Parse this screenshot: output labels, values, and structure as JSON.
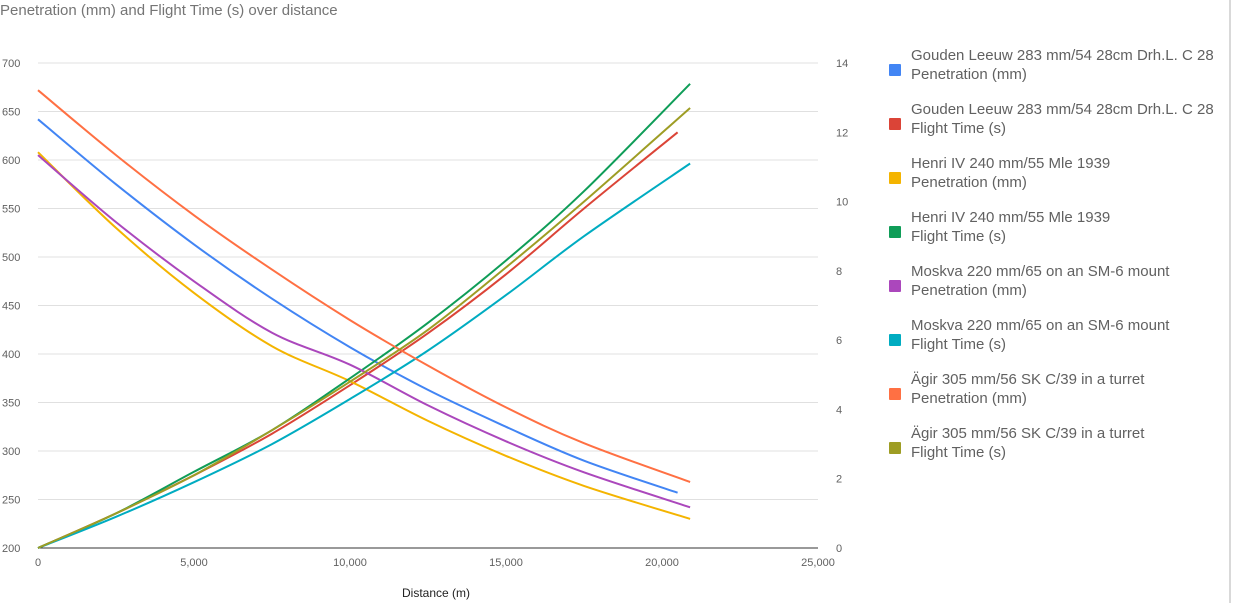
{
  "chart_data": {
    "type": "line",
    "title": "Penetration (mm) and Flight Time (s) over distance",
    "xlabel": "Distance (m)",
    "xlim": [
      0,
      25000
    ],
    "x_ticks": [
      "0",
      "5,000",
      "10,000",
      "15,000",
      "20,000",
      "25,000"
    ],
    "ylim_left": [
      200,
      700
    ],
    "y_ticks_left": [
      "200",
      "250",
      "300",
      "350",
      "400",
      "450",
      "500",
      "550",
      "600",
      "650",
      "700"
    ],
    "ylim_right": [
      0,
      14
    ],
    "y_ticks_right": [
      "0",
      "2",
      "4",
      "6",
      "8",
      "10",
      "12",
      "14"
    ],
    "grid": true,
    "legend_position": "right",
    "series": [
      {
        "name": "Gouden Leeuw 283 mm/54 28cm Drh.L. C 28 Penetration (mm)",
        "legend_lines": [
          "Gouden Leeuw 283 mm/54 28cm Drh.L. C 28",
          "Penetration (mm)"
        ],
        "axis": "left",
        "color": "#4285f4",
        "x": [
          0,
          2500,
          5000,
          7500,
          10000,
          12500,
          15000,
          17500,
          20500
        ],
        "y": [
          642,
          575,
          513,
          457,
          407,
          363,
          325,
          290,
          257
        ]
      },
      {
        "name": "Gouden Leeuw 283 mm/54 28cm Drh.L. C 28 Flight Time (s)",
        "legend_lines": [
          "Gouden Leeuw 283 mm/54 28cm Drh.L. C 28",
          "Flight Time (s)"
        ],
        "axis": "right",
        "color": "#db4437",
        "x": [
          0,
          2500,
          5000,
          7500,
          10000,
          12500,
          15000,
          17500,
          20500
        ],
        "y": [
          0,
          1.0,
          2.1,
          3.3,
          4.7,
          6.2,
          7.9,
          9.8,
          12.0
        ]
      },
      {
        "name": "Henri IV 240 mm/55 Mle 1939 Penetration (mm)",
        "legend_lines": [
          "Henri IV 240 mm/55 Mle 1939",
          "Penetration (mm)"
        ],
        "axis": "left",
        "color": "#f4b400",
        "x": [
          0,
          2500,
          5000,
          7500,
          10000,
          12500,
          15000,
          17500,
          20900
        ],
        "y": [
          608,
          530,
          463,
          408,
          372,
          331,
          295,
          264,
          230
        ]
      },
      {
        "name": "Henri IV 240 mm/55 Mle 1939 Flight Time (s)",
        "legend_lines": [
          "Henri IV 240 mm/55 Mle 1939",
          "Flight Time (s)"
        ],
        "axis": "right",
        "color": "#0f9d58",
        "x": [
          0,
          2500,
          5000,
          7500,
          10000,
          12500,
          15000,
          17500,
          20900
        ],
        "y": [
          0,
          1.0,
          2.2,
          3.4,
          4.9,
          6.5,
          8.3,
          10.3,
          13.4
        ]
      },
      {
        "name": "Moskva 220 mm/65 on an SM-6 mount Penetration (mm)",
        "legend_lines": [
          "Moskva 220 mm/65 on an SM-6 mount",
          "Penetration (mm)"
        ],
        "axis": "left",
        "color": "#ab47bc",
        "x": [
          0,
          2500,
          5000,
          7500,
          10000,
          12500,
          15000,
          17500,
          20900
        ],
        "y": [
          605,
          536,
          475,
          422,
          389,
          347,
          310,
          278,
          242
        ]
      },
      {
        "name": "Moskva 220 mm/65 on an SM-6 mount Flight Time (s)",
        "legend_lines": [
          "Moskva 220 mm/65 on an SM-6 mount",
          "Flight Time (s)"
        ],
        "axis": "right",
        "color": "#00acc1",
        "x": [
          0,
          2500,
          5000,
          7500,
          10000,
          12500,
          15000,
          17500,
          20900
        ],
        "y": [
          0,
          0.9,
          1.9,
          3.0,
          4.3,
          5.7,
          7.3,
          9.0,
          11.1
        ]
      },
      {
        "name": "Ägir 305 mm/56 SK C/39 in a turret Penetration (mm)",
        "legend_lines": [
          "Ägir 305 mm/56 SK C/39 in a turret",
          "Penetration (mm)"
        ],
        "axis": "left",
        "color": "#ff7043",
        "x": [
          0,
          2500,
          5000,
          7500,
          10000,
          12500,
          15000,
          17500,
          20900
        ],
        "y": [
          672,
          605,
          543,
          487,
          435,
          388,
          345,
          308,
          268
        ]
      },
      {
        "name": "Ägir 305 mm/56 SK C/39 in a turret Flight Time (s)",
        "legend_lines": [
          "Ägir 305 mm/56 SK C/39 in a turret",
          "Flight Time (s)"
        ],
        "axis": "right",
        "color": "#9e9d24",
        "x": [
          0,
          2500,
          5000,
          7500,
          10000,
          12500,
          15000,
          17500,
          20900
        ],
        "y": [
          0,
          1.0,
          2.1,
          3.4,
          4.8,
          6.3,
          8.1,
          10.0,
          12.7
        ]
      }
    ]
  }
}
